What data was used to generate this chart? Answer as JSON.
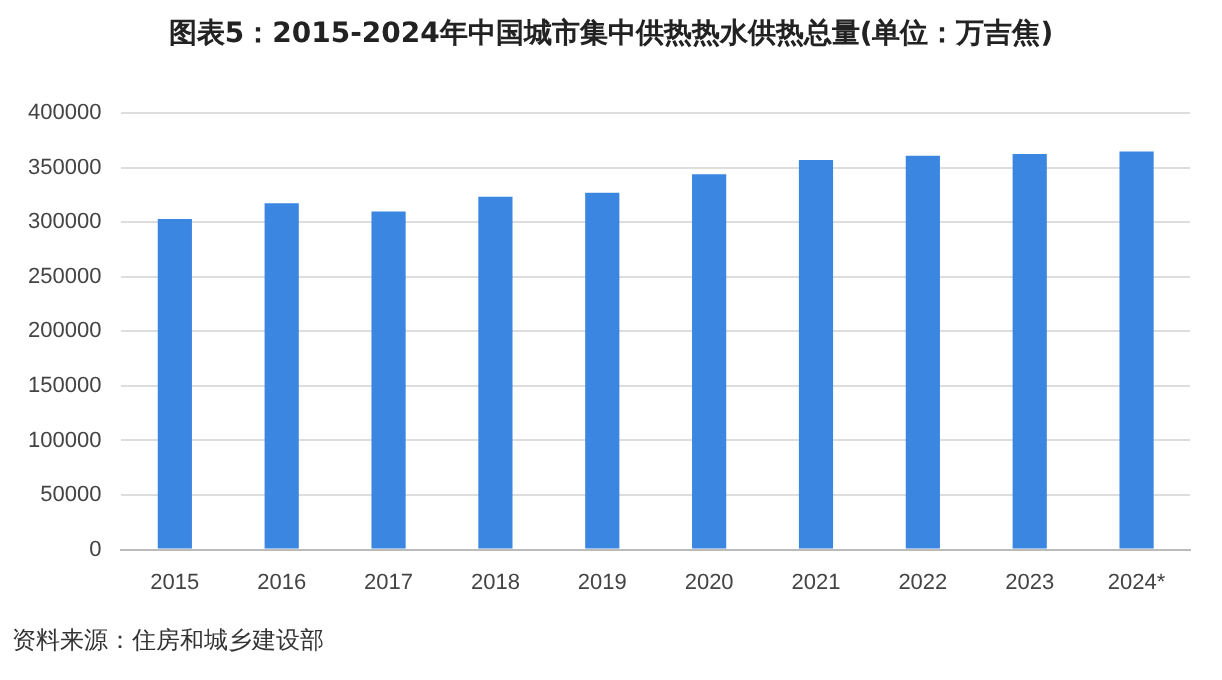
{
  "chart_data": {
    "type": "bar",
    "title": "图表5：2015-2024年中国城市集中供热热水供热总量(单位：万吉焦)",
    "categories": [
      "2015",
      "2016",
      "2017",
      "2018",
      "2019",
      "2020",
      "2021",
      "2022",
      "2023",
      "2024*"
    ],
    "values": [
      303000,
      317500,
      310000,
      323500,
      327000,
      344000,
      357000,
      361000,
      362500,
      365000
    ],
    "color": "#3a86e0",
    "ylim": [
      0,
      400000
    ],
    "yticks": [
      0,
      50000,
      100000,
      150000,
      200000,
      250000,
      300000,
      350000,
      400000
    ],
    "grid": "y",
    "legend": false,
    "annotations": [
      "资料来源：住房和城乡建设部"
    ]
  }
}
